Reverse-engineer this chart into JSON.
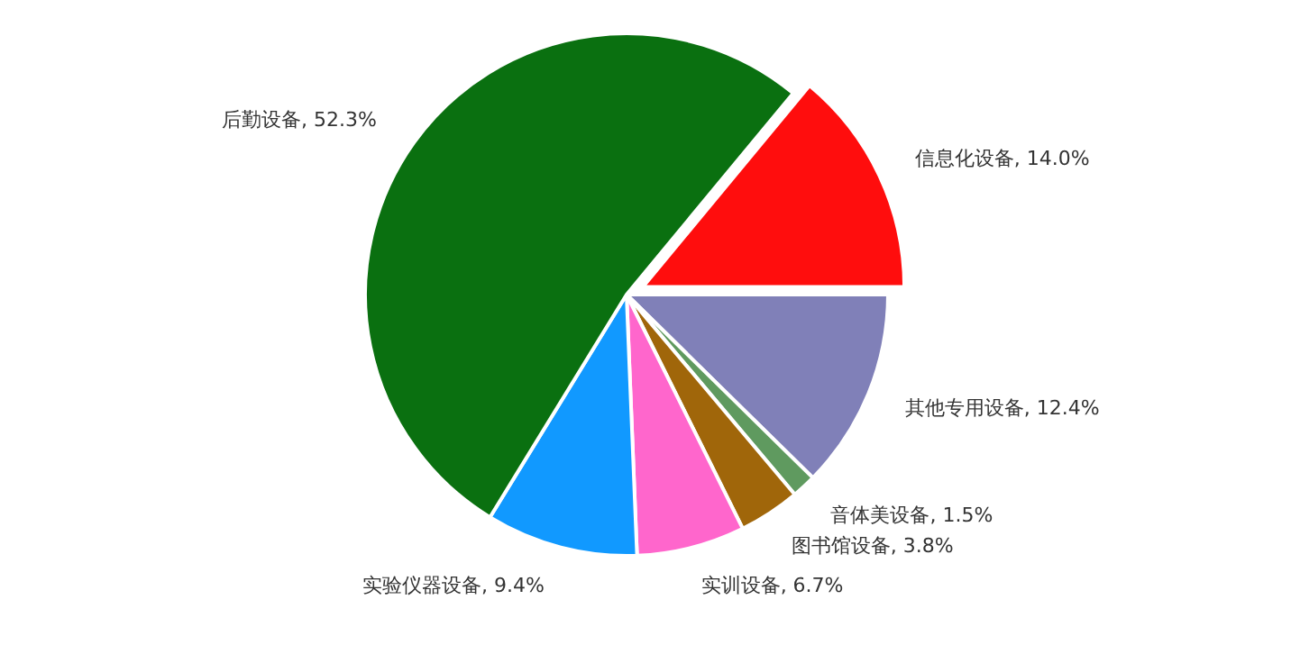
{
  "chart_data": {
    "type": "pie",
    "categories": [
      "信息化设备",
      "其他专用设备",
      "音体美设备",
      "图书馆设备",
      "实训设备",
      "实验仪器设备",
      "后勤设备"
    ],
    "values": [
      14.0,
      12.4,
      1.5,
      3.8,
      6.7,
      9.4,
      52.3
    ],
    "colors": [
      "#ff0d0d",
      "#8080b8",
      "#5f9a5f",
      "#a0660a",
      "#ff66cc",
      "#1199ff",
      "#0a7010"
    ],
    "value_labels": [
      ", 14.0%",
      ", 12.4%",
      ", 1.5%",
      ", 3.8%",
      ", 6.7%",
      ", 9.4%",
      ", 52.3%"
    ]
  }
}
